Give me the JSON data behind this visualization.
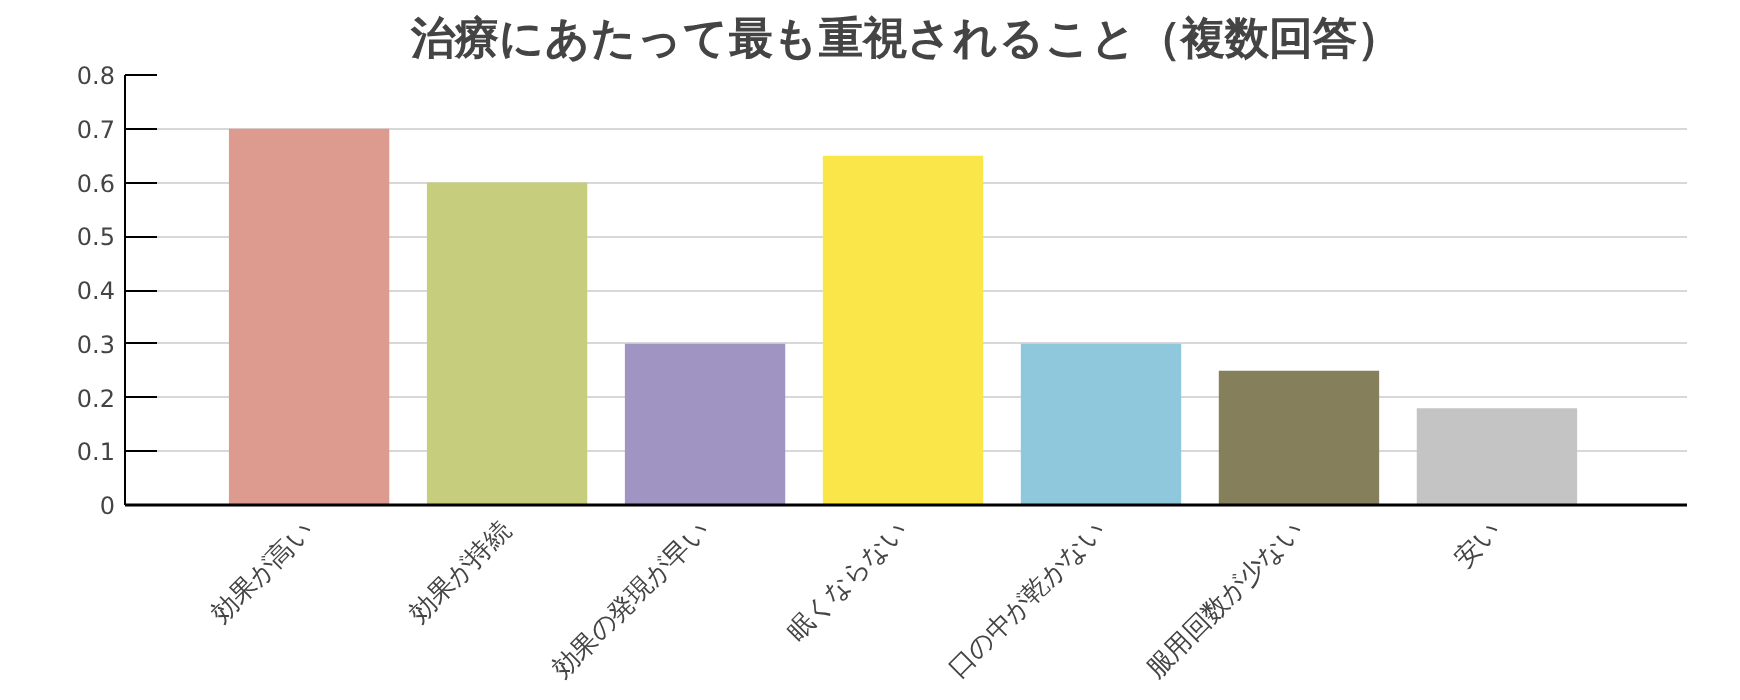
{
  "chart_data": {
    "type": "bar",
    "title": "治療にあたって最も重視されること（複数回答）",
    "categories": [
      "効果が高い",
      "効果が持続",
      "効果の発現が早い",
      "眠くならない",
      "口の中が乾かない",
      "服用回数が少ない",
      "安い"
    ],
    "values": [
      0.7,
      0.6,
      0.3,
      0.65,
      0.3,
      0.25,
      0.18
    ],
    "colors": [
      "#dd9a8f",
      "#c6ce7e",
      "#a094c2",
      "#fbe64a",
      "#8fc8dc",
      "#857f5c",
      "#c4c4c4"
    ],
    "ylim": [
      0,
      0.8
    ],
    "yticks": [
      0,
      0.1,
      0.2,
      0.3,
      0.4,
      0.5,
      0.6,
      0.7,
      0.8
    ],
    "grid": "y"
  }
}
